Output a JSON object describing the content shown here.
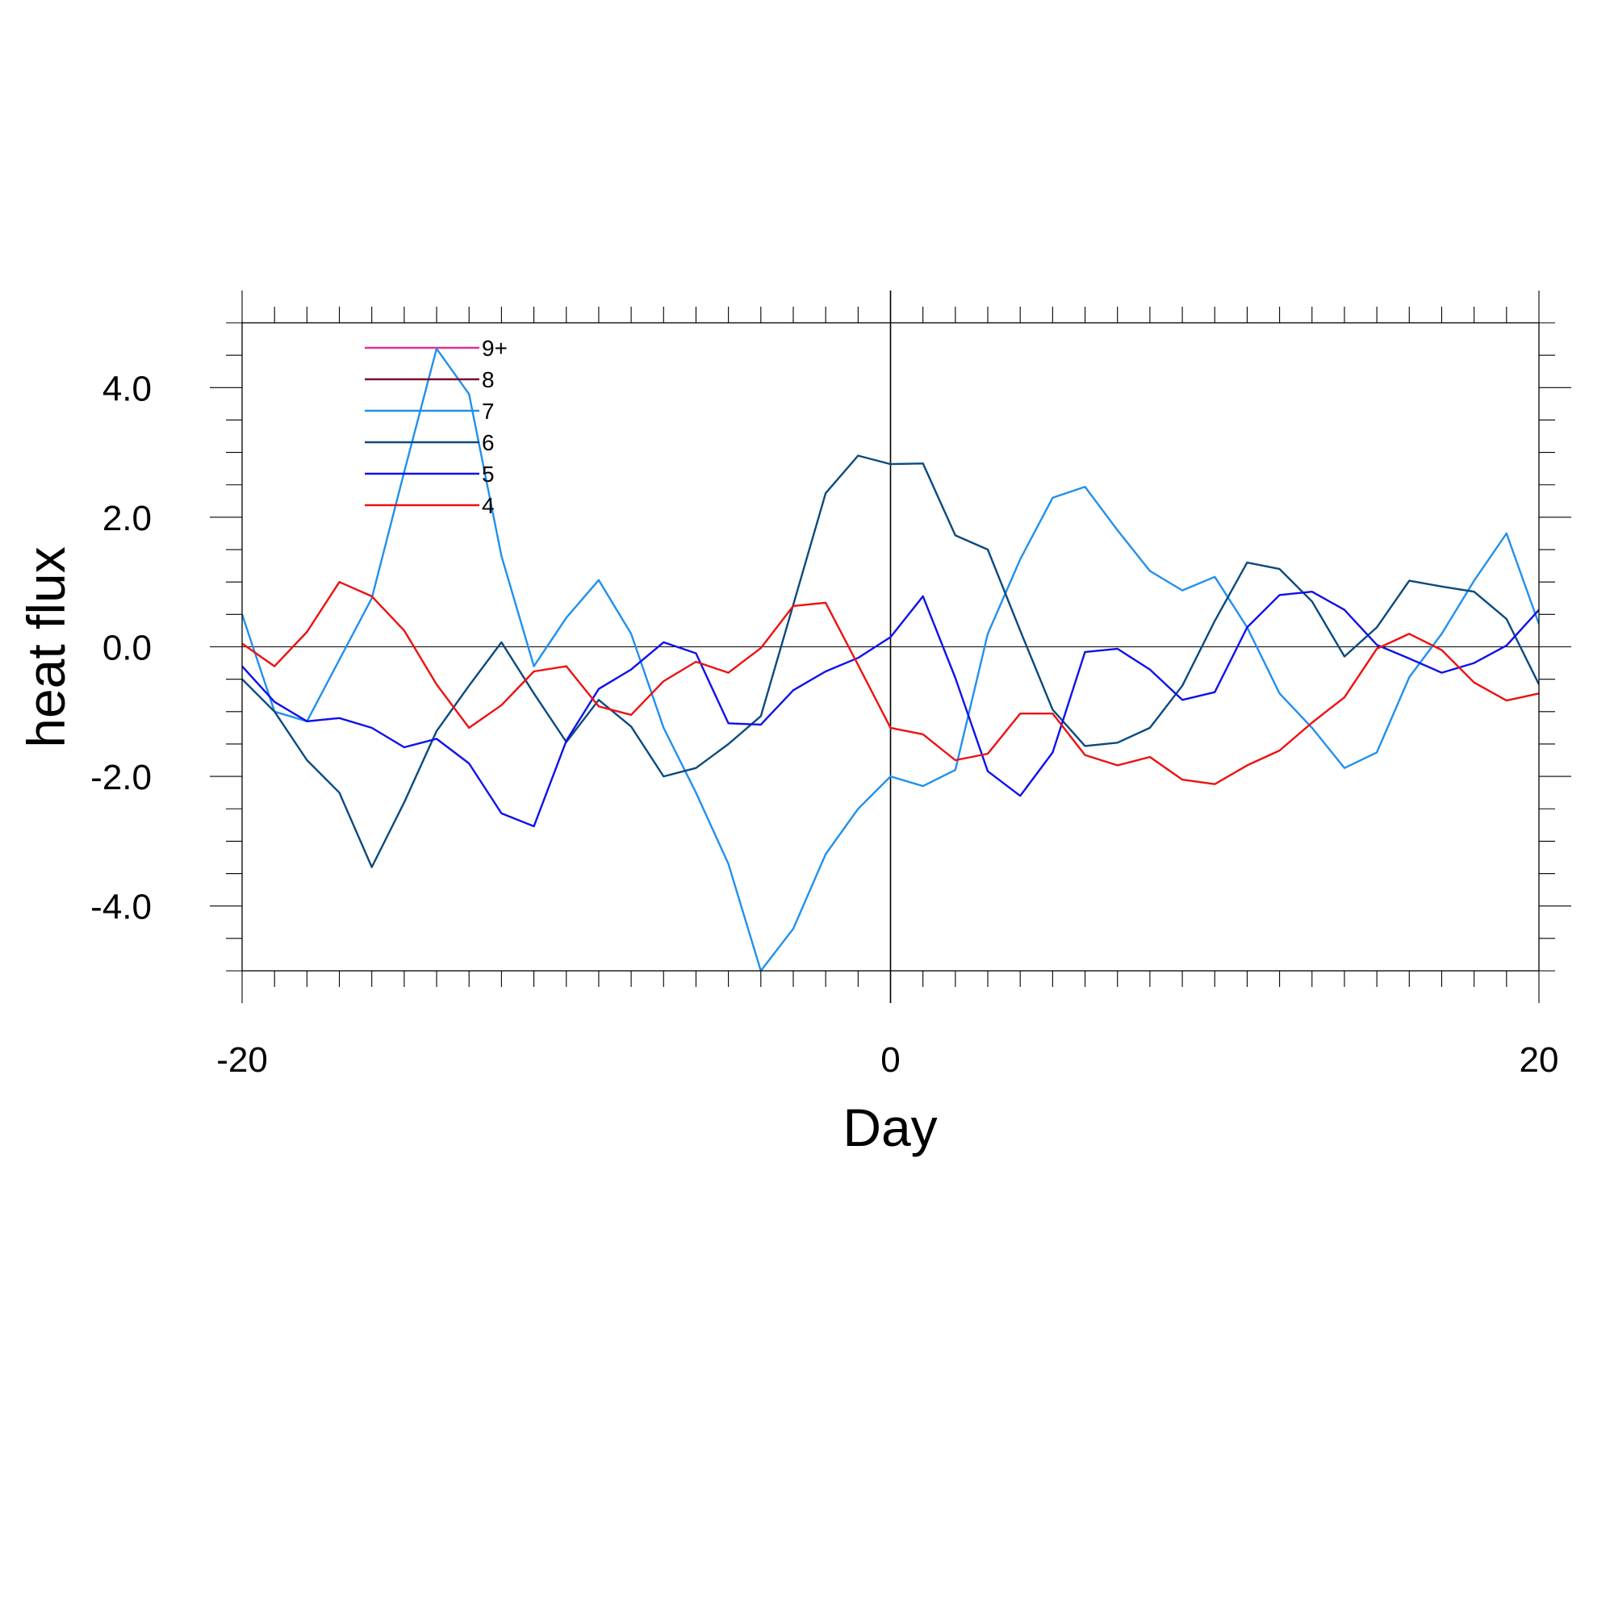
{
  "chart_data": {
    "type": "line",
    "xlabel": "Day",
    "ylabel": "heat flux",
    "xlim": [
      -20,
      20
    ],
    "ylim": [
      -5,
      5
    ],
    "x_ticks": [
      -20,
      0,
      20
    ],
    "x_tick_labels": [
      "-20",
      "0",
      "20"
    ],
    "y_ticks": [
      -4,
      -2,
      0,
      2,
      4
    ],
    "y_tick_labels": [
      "-4.0",
      "-2.0",
      "0.0",
      "2.0",
      "4.0"
    ],
    "reference_lines": {
      "y": 0,
      "x": 0
    },
    "legend_position": "top-left",
    "legend": [
      {
        "name": "9+",
        "color": "#e0309a"
      },
      {
        "name": "8",
        "color": "#7a1030"
      },
      {
        "name": "7",
        "color": "#2090ee"
      },
      {
        "name": "6",
        "color": "#0a4a7e"
      },
      {
        "name": "5",
        "color": "#1010ee"
      },
      {
        "name": "4",
        "color": "#ee1010"
      }
    ],
    "x": [
      -20,
      -19,
      -18,
      -17,
      -16,
      -15,
      -14,
      -13,
      -12,
      -11,
      -10,
      -9,
      -8,
      -7,
      -6,
      -5,
      -4,
      -3,
      -2,
      -1,
      0,
      1,
      2,
      3,
      4,
      5,
      6,
      7,
      8,
      9,
      10,
      11,
      12,
      13,
      14,
      15,
      16,
      17,
      18,
      19,
      20
    ],
    "series": [
      {
        "name": "7",
        "color": "#2090ee",
        "values": [
          0.5,
          -1.0,
          -1.15,
          -0.2,
          0.75,
          2.7,
          4.6,
          3.9,
          1.4,
          -0.3,
          0.45,
          1.03,
          0.2,
          -1.25,
          -2.25,
          -3.35,
          -5.0,
          -4.35,
          -3.2,
          -2.5,
          -2.0,
          -2.15,
          -1.9,
          0.2,
          1.35,
          2.3,
          2.47,
          1.8,
          1.17,
          0.87,
          1.08,
          0.3,
          -0.72,
          -1.25,
          -1.87,
          -1.63,
          -0.47,
          0.2,
          1.02,
          1.75,
          0.35
        ]
      },
      {
        "name": "6",
        "color": "#0a4a7e",
        "values": [
          -0.5,
          -1.0,
          -1.75,
          -2.25,
          -3.4,
          -2.4,
          -1.3,
          -0.6,
          0.07,
          -0.72,
          -1.47,
          -0.82,
          -1.23,
          -2.0,
          -1.87,
          -1.5,
          -1.07,
          0.65,
          2.37,
          2.95,
          2.82,
          2.83,
          1.72,
          1.5,
          0.25,
          -0.97,
          -1.53,
          -1.48,
          -1.25,
          -0.6,
          0.4,
          1.3,
          1.2,
          0.7,
          -0.15,
          0.3,
          1.02,
          0.93,
          0.85,
          0.43,
          -0.58
        ]
      },
      {
        "name": "5",
        "color": "#1010ee",
        "values": [
          -0.3,
          -0.85,
          -1.15,
          -1.1,
          -1.25,
          -1.55,
          -1.42,
          -1.8,
          -2.57,
          -2.77,
          -1.45,
          -0.65,
          -0.35,
          0.07,
          -0.1,
          -1.18,
          -1.2,
          -0.67,
          -0.38,
          -0.17,
          0.15,
          0.78,
          -0.48,
          -1.92,
          -2.3,
          -1.63,
          -0.08,
          -0.03,
          -0.35,
          -0.82,
          -0.7,
          0.3,
          0.8,
          0.85,
          0.57,
          0.03,
          -0.18,
          -0.4,
          -0.25,
          0.02,
          0.57
        ]
      },
      {
        "name": "4",
        "color": "#ee1010",
        "values": [
          0.05,
          -0.3,
          0.23,
          1.0,
          0.78,
          0.25,
          -0.58,
          -1.25,
          -0.9,
          -0.38,
          -0.3,
          -0.92,
          -1.05,
          -0.53,
          -0.23,
          -0.4,
          -0.02,
          0.63,
          0.68,
          -0.28,
          -1.25,
          -1.35,
          -1.75,
          -1.65,
          -1.03,
          -1.03,
          -1.67,
          -1.83,
          -1.7,
          -2.05,
          -2.12,
          -1.83,
          -1.6,
          -1.17,
          -0.78,
          -0.03,
          0.2,
          -0.05,
          -0.55,
          -0.83,
          -0.72
        ]
      }
    ]
  }
}
